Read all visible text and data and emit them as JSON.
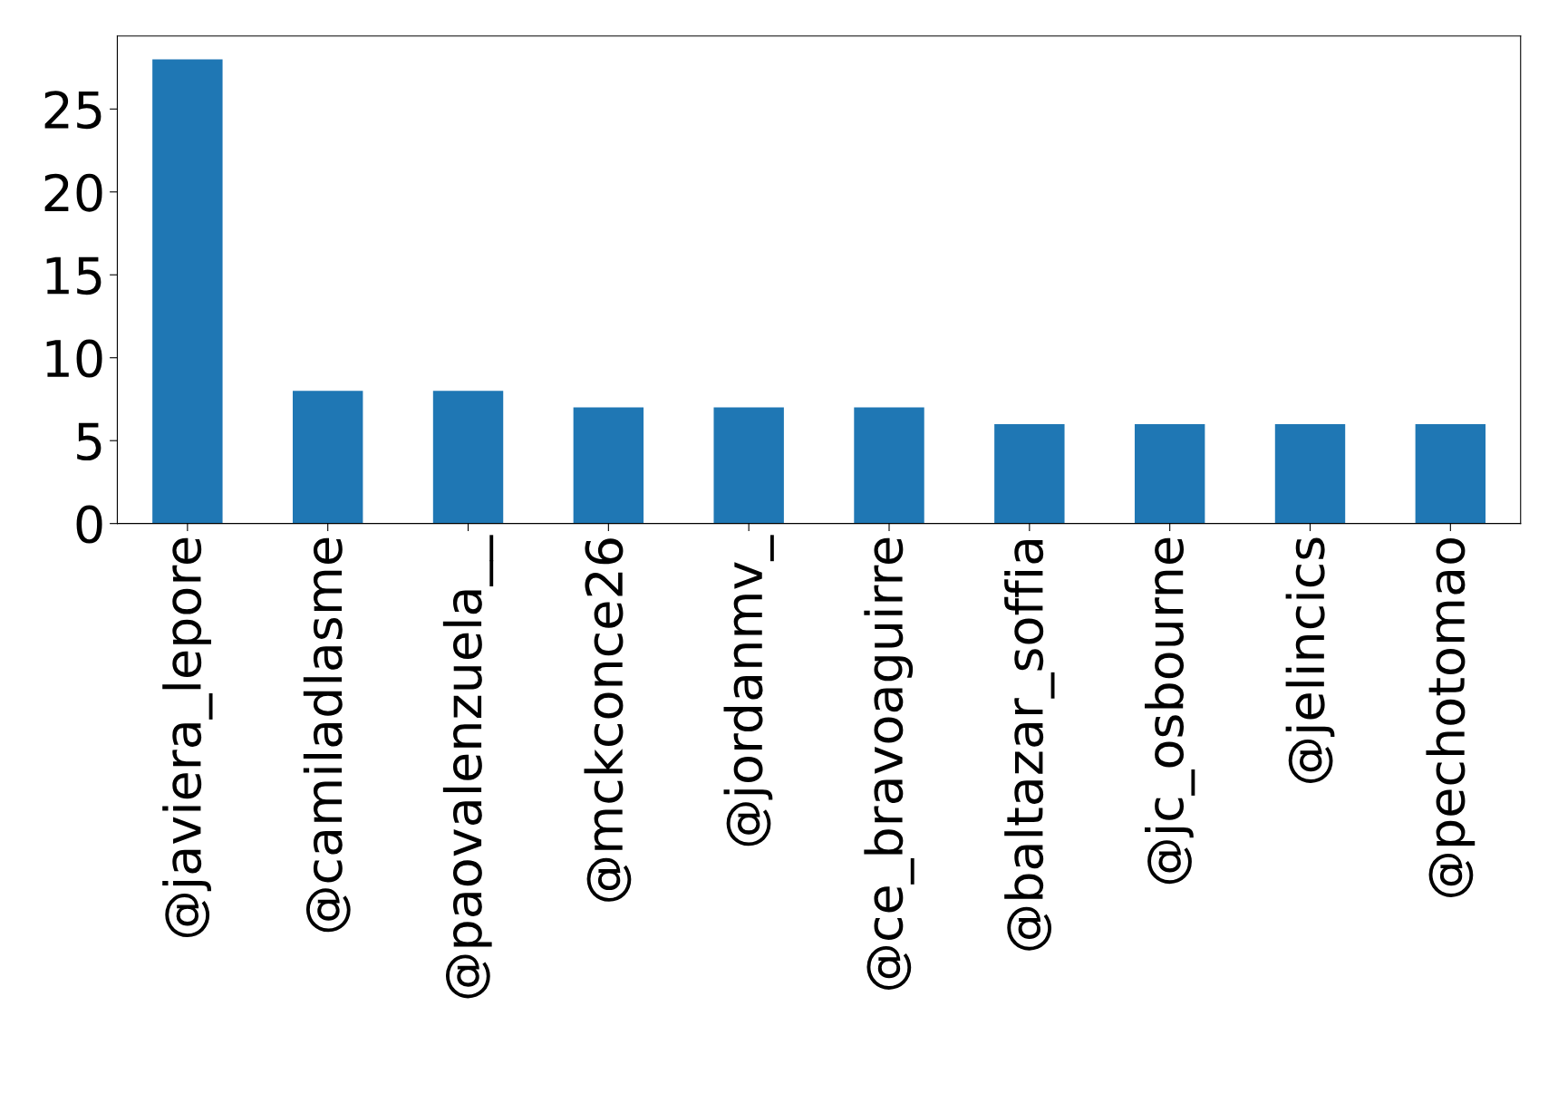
{
  "chart_data": {
    "type": "bar",
    "categories": [
      "@javiera_lepore",
      "@camiladlasme",
      "@paovalenzuela__",
      "@mckconce26",
      "@jordanmv_",
      "@ce_bravoaguirre",
      "@baltazar_soffia",
      "@jc_osbourne",
      "@jelincics",
      "@pechotomao"
    ],
    "values": [
      28,
      8,
      8,
      7,
      7,
      7,
      6,
      6,
      6,
      6
    ],
    "color": "#1f77b4",
    "ylim": [
      0,
      29.4
    ],
    "yticks": [
      0,
      5,
      10,
      15,
      20,
      25
    ],
    "grid": false
  }
}
